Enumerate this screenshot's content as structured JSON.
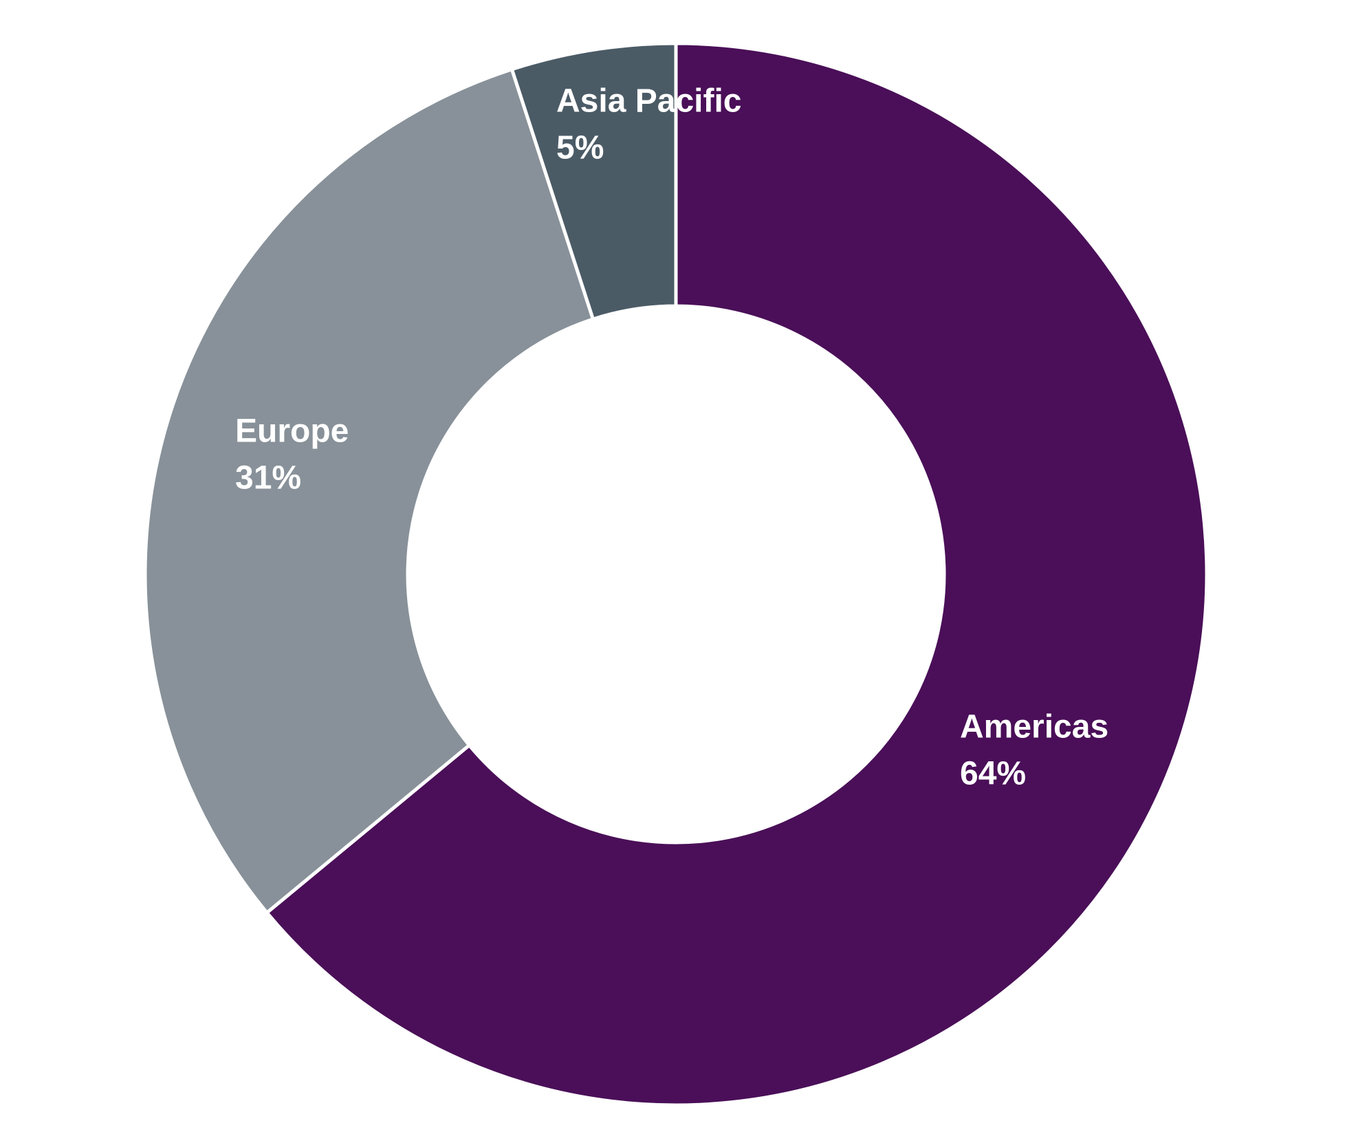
{
  "chart_data": {
    "type": "donut",
    "categories": [
      "Americas",
      "Europe",
      "Asia Pacific"
    ],
    "values": [
      64,
      31,
      5
    ],
    "value_labels": [
      "64%",
      "31%",
      "5%"
    ],
    "colors": [
      "#4a0f58",
      "#889199",
      "#4b5b66"
    ]
  }
}
